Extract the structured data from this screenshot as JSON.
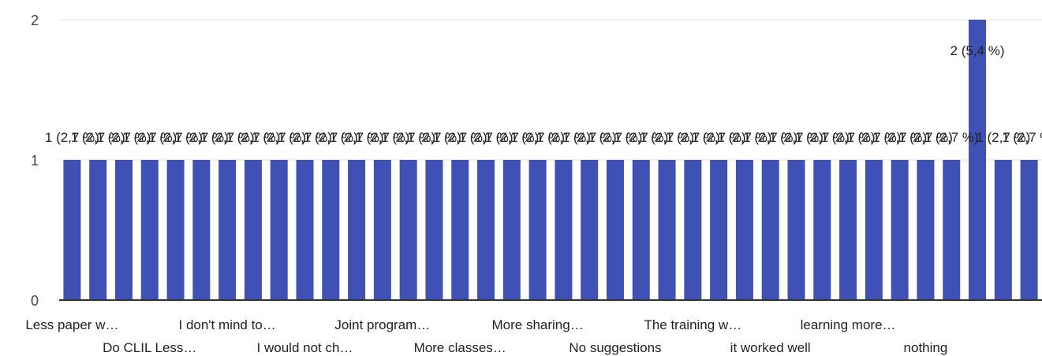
{
  "chart_data": {
    "type": "bar",
    "title": "",
    "xlabel": "",
    "ylabel": "",
    "ylim": [
      0,
      2
    ],
    "yticks": [
      "0",
      "1",
      "2"
    ],
    "grid": true,
    "legend": "none",
    "bar_color": "#3f51b5",
    "values": [
      1,
      1,
      1,
      1,
      1,
      1,
      1,
      1,
      1,
      1,
      1,
      1,
      1,
      1,
      1,
      1,
      1,
      1,
      1,
      1,
      1,
      1,
      1,
      1,
      1,
      1,
      1,
      1,
      1,
      1,
      1,
      1,
      1,
      1,
      1,
      2,
      1,
      1
    ],
    "data_labels": [
      "1 (2,7 %)",
      "1 (2,7 %)",
      "1 (2,7 %)",
      "1 (2,7 %)",
      "1 (2,7 %)",
      "1 (2,7 %)",
      "1 (2,7 %)",
      "1 (2,7 %)",
      "1 (2,7 %)",
      "1 (2,7 %)",
      "1 (2,7 %)",
      "1 (2,7 %)",
      "1 (2,7 %)",
      "1 (2,7 %)",
      "1 (2,7 %)",
      "1 (2,7 %)",
      "1 (2,7 %)",
      "1 (2,7 %)",
      "1 (2,7 %)",
      "1 (2,7 %)",
      "1 (2,7 %)",
      "1 (2,7 %)",
      "1 (2,7 %)",
      "1 (2,7 %)",
      "1 (2,7 %)",
      "1 (2,7 %)",
      "1 (2,7 %)",
      "1 (2,7 %)",
      "1 (2,7 %)",
      "1 (2,7 %)",
      "1 (2,7 %)",
      "1 (2,7 %)",
      "1 (2,7 %)",
      "1 (2,7 %)",
      "1 (2,7 %)",
      "2 (5,4 %)",
      "1 (2,7 %)",
      "1 (2,7 %)"
    ],
    "x_tick_labels": [
      {
        "bar": 0,
        "text": "Less paper w…",
        "row": 1
      },
      {
        "bar": 3,
        "text": "Do CLIL Less…",
        "row": 2
      },
      {
        "bar": 6,
        "text": "I don't mind to…",
        "row": 1
      },
      {
        "bar": 9,
        "text": "I would not ch…",
        "row": 2
      },
      {
        "bar": 12,
        "text": "Joint program…",
        "row": 1
      },
      {
        "bar": 15,
        "text": "More classes…",
        "row": 2
      },
      {
        "bar": 18,
        "text": "More sharing…",
        "row": 1
      },
      {
        "bar": 21,
        "text": "No suggestions",
        "row": 2
      },
      {
        "bar": 24,
        "text": "The training w…",
        "row": 1
      },
      {
        "bar": 27,
        "text": "it worked well",
        "row": 2
      },
      {
        "bar": 30,
        "text": "learning more…",
        "row": 1
      },
      {
        "bar": 33,
        "text": "nothing",
        "row": 2
      }
    ]
  }
}
